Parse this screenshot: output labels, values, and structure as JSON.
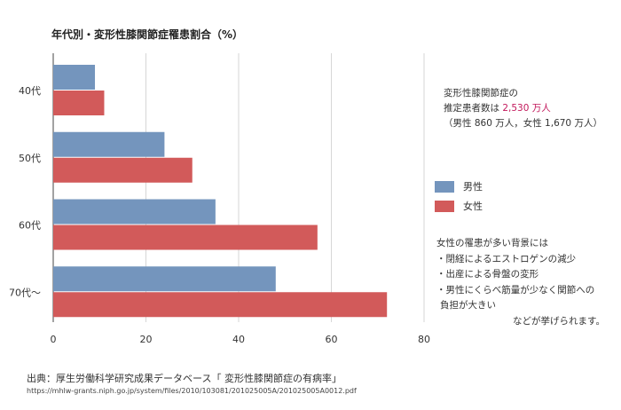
{
  "chart_data": {
    "type": "bar",
    "orientation": "horizontal",
    "title": "年代別・変形性膝関節症罹患割合（%）",
    "categories": [
      "40代",
      "50代",
      "60代",
      "70代〜"
    ],
    "series": [
      {
        "name": "男性",
        "color": "#7495bd",
        "values": [
          9,
          24,
          35,
          48
        ]
      },
      {
        "name": "女性",
        "color": "#d25a5a",
        "values": [
          11,
          30,
          57,
          72
        ]
      }
    ],
    "xlim": [
      0,
      80
    ],
    "xticks": [
      "0",
      "20",
      "40",
      "60",
      "80"
    ],
    "grid": true,
    "legend_position": "right"
  },
  "estimate": {
    "line1": "変形性膝関節症の",
    "line2_prefix": "推定患者数は ",
    "line2_highlight": "2,530 万人",
    "line3": "（男性 860 万人，女性 1,670 万人）",
    "highlight_color": "#c2185b"
  },
  "legend": {
    "male": "男性",
    "female": "女性"
  },
  "background": {
    "heading": "女性の罹患が多い背景には",
    "item1": "・閉経によるエストロゲンの減少",
    "item2": "・出産による骨盤の変形",
    "item3a": "・男性にくらべ筋量が少なく関節への",
    "item3b": "負担が大きい",
    "closing": "などが挙げられます。"
  },
  "source": {
    "text": "出典：厚生労働科学研究成果データベース「 変形性膝関節症の有病率」",
    "url": "https://mhlw-grants.niph.go.jp/system/files/2010/103081/201025005A/201025005A0012.pdf"
  }
}
